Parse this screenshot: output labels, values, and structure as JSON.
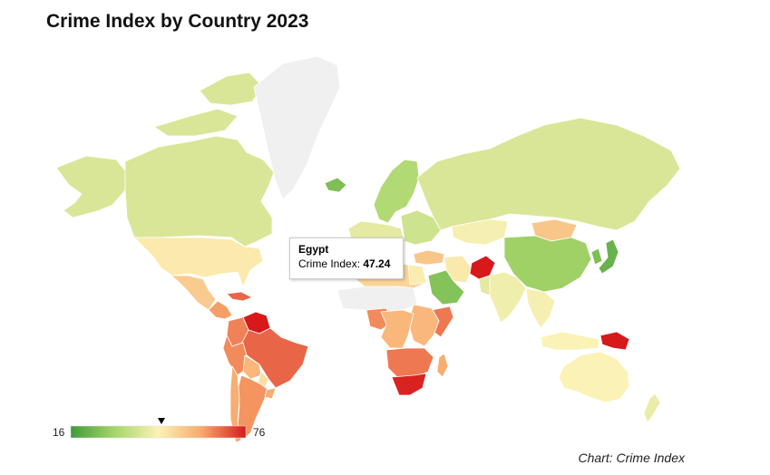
{
  "title": "Crime Index by Country 2023",
  "credit": "Chart: Crime Index",
  "colors": {
    "low": "#3f9b3a",
    "mid_low": "#d7ea9a",
    "mid": "#fbf2b6",
    "mid_high": "#f8c281",
    "high": "#e8673c",
    "max": "#d7191c",
    "no_data": "#f0f0f0",
    "ocean": "#ffffff"
  },
  "legend": {
    "min": 16,
    "max": 76,
    "min_label": "16",
    "max_label": "76",
    "marker_value": 47.24
  },
  "tooltip": {
    "country": "Egypt",
    "metric_label": "Crime Index:",
    "value": "47.24"
  },
  "map_data": {
    "metric": "Crime Index",
    "regions": [
      {
        "name": "Greenland",
        "value": null
      },
      {
        "name": "Canada",
        "value": 40
      },
      {
        "name": "Alaska",
        "value": 40
      },
      {
        "name": "United States",
        "value": 47.8
      },
      {
        "name": "Mexico",
        "value": 54
      },
      {
        "name": "Central America",
        "value": 62
      },
      {
        "name": "Caribbean",
        "value": 68
      },
      {
        "name": "Venezuela",
        "value": 82
      },
      {
        "name": "Colombia",
        "value": 65
      },
      {
        "name": "Brazil",
        "value": 68
      },
      {
        "name": "Peru",
        "value": 64
      },
      {
        "name": "Bolivia",
        "value": 58
      },
      {
        "name": "Paraguay",
        "value": 50
      },
      {
        "name": "Argentina",
        "value": 63
      },
      {
        "name": "Chile",
        "value": 60
      },
      {
        "name": "Uruguay",
        "value": 60
      },
      {
        "name": "Iceland",
        "value": 25
      },
      {
        "name": "Scandinavia",
        "value": 33
      },
      {
        "name": "Western Europe",
        "value": 42
      },
      {
        "name": "Eastern Europe",
        "value": 38
      },
      {
        "name": "Russia",
        "value": 40
      },
      {
        "name": "Kazakhstan",
        "value": 45
      },
      {
        "name": "Turkey",
        "value": 55
      },
      {
        "name": "Egypt",
        "value": 47.24
      },
      {
        "name": "North Africa",
        "value": 52
      },
      {
        "name": "Sahel",
        "value": null
      },
      {
        "name": "Nigeria",
        "value": 64
      },
      {
        "name": "East Africa",
        "value": 58
      },
      {
        "name": "Somalia",
        "value": 66
      },
      {
        "name": "Central Africa",
        "value": 58
      },
      {
        "name": "Southern Africa",
        "value": 66
      },
      {
        "name": "South Africa",
        "value": 75
      },
      {
        "name": "Madagascar",
        "value": 60
      },
      {
        "name": "Saudi Arabia",
        "value": 26
      },
      {
        "name": "Iran",
        "value": 48
      },
      {
        "name": "Afghanistan",
        "value": 76
      },
      {
        "name": "Pakistan",
        "value": 42
      },
      {
        "name": "India",
        "value": 44
      },
      {
        "name": "China",
        "value": 30
      },
      {
        "name": "Mongolia",
        "value": 55
      },
      {
        "name": "Japan",
        "value": 22
      },
      {
        "name": "Korea",
        "value": 25
      },
      {
        "name": "Southeast Asia",
        "value": 45
      },
      {
        "name": "Indonesia",
        "value": 46
      },
      {
        "name": "Papua New Guinea",
        "value": 80
      },
      {
        "name": "Australia",
        "value": 46
      },
      {
        "name": "New Zealand",
        "value": 43
      }
    ]
  }
}
